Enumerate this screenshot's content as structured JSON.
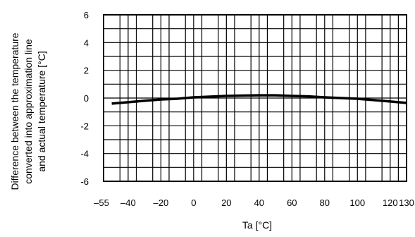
{
  "chart_data": {
    "type": "line",
    "xlabel": "Ta [°C]",
    "ylabel_lines": [
      "Difference between the temperature",
      "converted into approximation line",
      "and actual temperature [°C]"
    ],
    "xlim": [
      -55,
      130
    ],
    "ylim": [
      -6,
      6
    ],
    "x_ticks": [
      -55,
      -40,
      -20,
      0,
      20,
      40,
      60,
      80,
      100,
      120,
      130
    ],
    "x_tick_labels": [
      "–55",
      "–40",
      "–20",
      "0",
      "20",
      "40",
      "60",
      "80",
      "100",
      "120",
      "130"
    ],
    "y_ticks": [
      6,
      4,
      2,
      0,
      -2,
      -4,
      -6
    ],
    "y_tick_labels": [
      "6",
      "4",
      "2",
      "0",
      "-2",
      "-4",
      "-6"
    ],
    "grid": true,
    "x_grid_step": 10,
    "y_grid_step": 1,
    "series": [
      {
        "x": [
          -50,
          -40,
          -30,
          -20,
          -10,
          0,
          10,
          20,
          30,
          40,
          50,
          60,
          70,
          80,
          90,
          100,
          110,
          120,
          130
        ],
        "y": [
          -0.4,
          -0.3,
          -0.2,
          -0.1,
          -0.05,
          0.05,
          0.1,
          0.15,
          0.18,
          0.2,
          0.2,
          0.15,
          0.12,
          0.05,
          0.0,
          -0.05,
          -0.15,
          -0.25,
          -0.35
        ],
        "color": "#000000"
      }
    ]
  }
}
